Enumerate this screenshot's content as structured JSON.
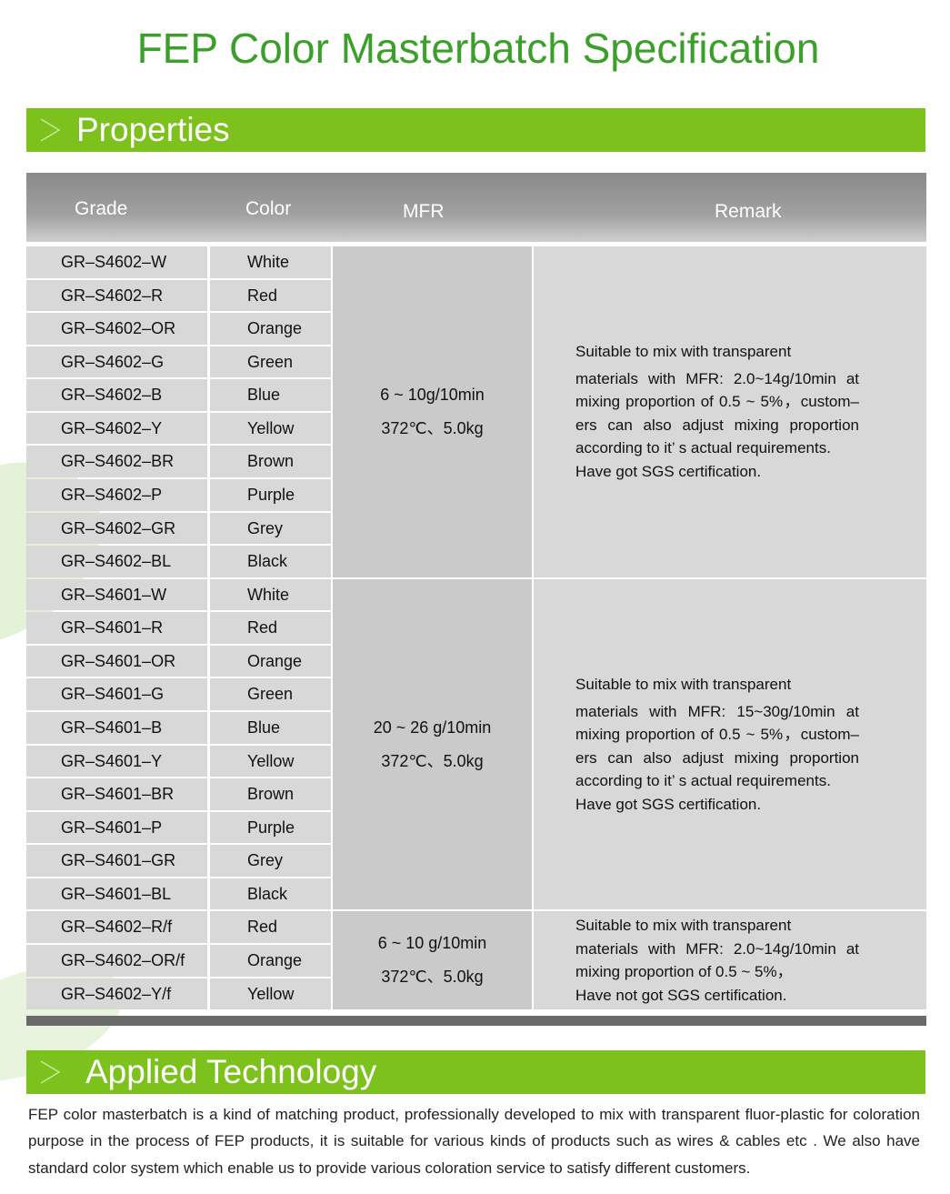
{
  "title": "FEP Color Masterbatch Specification",
  "sections": {
    "properties": "Properties",
    "applied": "Applied Technology"
  },
  "colors": {
    "green_bar": "#7dc11d",
    "title_green": "#3aa02a",
    "header_gray": "#939393",
    "cell_gray": "#d8d8d8"
  },
  "table": {
    "headers": [
      "Grade",
      "Color",
      "MFR",
      "Remark"
    ],
    "rows": [
      [
        "GR–S4602–W",
        "White"
      ],
      [
        "GR–S4602–R",
        "Red"
      ],
      [
        "GR–S4602–OR",
        "Orange"
      ],
      [
        "GR–S4602–G",
        "Green"
      ],
      [
        "GR–S4602–B",
        "Blue"
      ],
      [
        "GR–S4602–Y",
        "Yellow"
      ],
      [
        "GR–S4602–BR",
        "Brown"
      ],
      [
        "GR–S4602–P",
        "Purple"
      ],
      [
        "GR–S4602–GR",
        "Grey"
      ],
      [
        "GR–S4602–BL",
        "Black"
      ],
      [
        "GR–S4601–W",
        "White"
      ],
      [
        "GR–S4601–R",
        "Red"
      ],
      [
        "GR–S4601–OR",
        "Orange"
      ],
      [
        "GR–S4601–G",
        "Green"
      ],
      [
        "GR–S4601–B",
        "Blue"
      ],
      [
        "GR–S4601–Y",
        "Yellow"
      ],
      [
        "GR–S4601–BR",
        "Brown"
      ],
      [
        "GR–S4601–P",
        "Purple"
      ],
      [
        "GR–S4601–GR",
        "Grey"
      ],
      [
        "GR–S4601–BL",
        "Black"
      ],
      [
        "GR–S4602–R/f",
        "Red"
      ],
      [
        "GR–S4602–OR/f",
        "Orange"
      ],
      [
        "GR–S4602–Y/f",
        "Yellow"
      ]
    ],
    "groups": [
      {
        "mfr": [
          "6 ~ 10g/10min",
          "372℃、5.0kg"
        ],
        "remark": [
          "Suitable to mix with transparent",
          "materials with MFR: 2.0~14g/10min at mixing proportion of 0.5 ~ 5%，custom–ers can also adjust mixing proportion according to it’ s actual requirements.",
          "Have got SGS certification."
        ]
      },
      {
        "mfr": [
          "20 ~ 26 g/10min",
          "372℃、5.0kg"
        ],
        "remark": [
          "Suitable to mix with transparent",
          "materials with MFR: 15~30g/10min at mixing proportion of 0.5 ~ 5%，custom–ers can also adjust mixing proportion according to it’ s actual requirements.",
          "Have got SGS certification."
        ]
      },
      {
        "mfr": [
          "6 ~ 10 g/10min",
          "372℃、5.0kg"
        ],
        "remark": [
          "Suitable to mix with transparent",
          "materials with MFR: 2.0~14g/10min at mixing proportion of 0.5 ~ 5%，",
          "Have not got SGS certification."
        ]
      }
    ]
  },
  "applied_text": "FEP color masterbatch is a kind of matching product, professionally developed to mix with transparent fluor-plastic for coloration purpose in the process of FEP products, it is suitable for various kinds of products such as wires & cables etc . We also have standard color system which enable us to provide various coloration service to satisfy different customers."
}
